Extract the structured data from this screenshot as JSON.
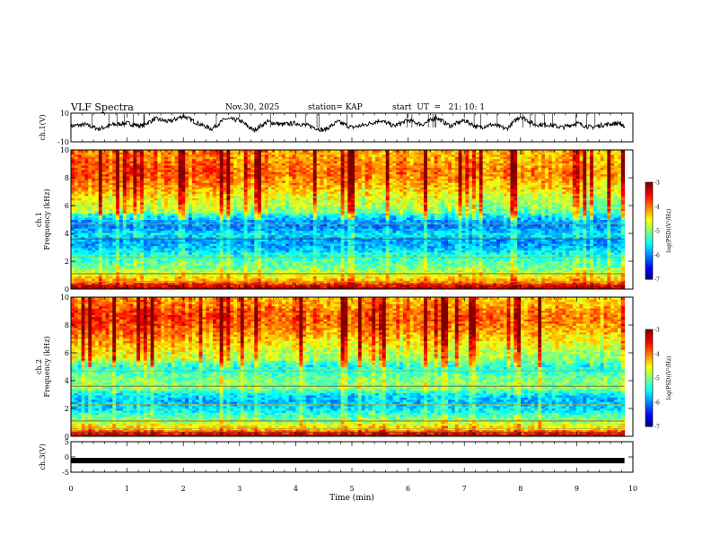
{
  "header": {
    "title": "VLF Spectra",
    "date": "Nov.30, 2025",
    "station": "station= KAP",
    "start": "start  UT  =   21: 10: 1"
  },
  "chart_data": [
    {
      "type": "line",
      "title": "",
      "xlabel": "",
      "ylabel": "ch.1(V)",
      "ylim": [
        -10,
        10
      ],
      "yticks": [
        "10",
        "-10"
      ],
      "xlim": [
        0,
        10
      ],
      "x": [
        0.0,
        0.25,
        0.5,
        0.75,
        1.0,
        1.25,
        1.5,
        1.75,
        2.0,
        2.25,
        2.5,
        2.75,
        3.0,
        3.25,
        3.5,
        3.75,
        4.0,
        4.25,
        4.5,
        4.75,
        5.0,
        5.25,
        5.5,
        5.75,
        6.0,
        6.25,
        6.5,
        6.75,
        7.0,
        7.25,
        7.5,
        7.75,
        8.0,
        8.25,
        8.5,
        8.75,
        9.0,
        9.25,
        9.5,
        9.75,
        9.85
      ],
      "y": [
        1,
        2,
        -1,
        2,
        3,
        1,
        6,
        4,
        8,
        3,
        -1,
        6,
        5,
        -2,
        4,
        2,
        3,
        1,
        -2,
        4,
        0,
        2,
        5,
        1,
        5,
        2,
        7,
        1,
        5,
        0,
        2,
        -1,
        8,
        2,
        2,
        0,
        3,
        0,
        2,
        3,
        1
      ]
    },
    {
      "type": "heatmap",
      "title": "",
      "xlabel": "",
      "ylabel": "ch.1\nFrequency (kHz)",
      "ylim": [
        0,
        10
      ],
      "yticks": [
        "0",
        "2",
        "4",
        "6",
        "8",
        "10"
      ],
      "xlim": [
        0,
        10
      ],
      "data_extent_x": [
        0,
        9.85
      ],
      "colorbar": {
        "label": "log(PSD)(V²/Hz)",
        "ticks": [
          "-3",
          "-4",
          "-5",
          "-6",
          "-7"
        ],
        "range": [
          -7,
          -3
        ]
      },
      "band_profile": [
        {
          "freq_khz": 0.1,
          "log_psd": -3.2
        },
        {
          "freq_khz": 0.5,
          "log_psd": -4.0
        },
        {
          "freq_khz": 1.0,
          "log_psd": -4.6
        },
        {
          "freq_khz": 1.5,
          "log_psd": -5.0
        },
        {
          "freq_khz": 2.0,
          "log_psd": -5.2
        },
        {
          "freq_khz": 2.5,
          "log_psd": -5.4
        },
        {
          "freq_khz": 3.0,
          "log_psd": -5.8
        },
        {
          "freq_khz": 3.5,
          "log_psd": -5.9
        },
        {
          "freq_khz": 4.0,
          "log_psd": -5.6
        },
        {
          "freq_khz": 4.5,
          "log_psd": -6.0
        },
        {
          "freq_khz": 5.0,
          "log_psd": -5.8
        },
        {
          "freq_khz": 5.5,
          "log_psd": -5.2
        },
        {
          "freq_khz": 6.0,
          "log_psd": -5.0
        },
        {
          "freq_khz": 6.5,
          "log_psd": -4.8
        },
        {
          "freq_khz": 7.0,
          "log_psd": -4.6
        },
        {
          "freq_khz": 7.5,
          "log_psd": -4.4
        },
        {
          "freq_khz": 8.0,
          "log_psd": -4.2
        },
        {
          "freq_khz": 8.5,
          "log_psd": -4.1
        },
        {
          "freq_khz": 9.0,
          "log_psd": -4.2
        },
        {
          "freq_khz": 9.5,
          "log_psd": -4.3
        },
        {
          "freq_khz": 10.0,
          "log_psd": -4.3
        }
      ]
    },
    {
      "type": "heatmap",
      "title": "",
      "xlabel": "",
      "ylabel": "ch.2\nFrequency (kHz)",
      "ylim": [
        0,
        10
      ],
      "yticks": [
        "0",
        "2",
        "4",
        "6",
        "8",
        "10"
      ],
      "xlim": [
        0,
        10
      ],
      "data_extent_x": [
        0,
        9.85
      ],
      "colorbar": {
        "label": "log(PSD)(V²/Hz)",
        "ticks": [
          "-3",
          "-4",
          "-5",
          "-6",
          "-7"
        ],
        "range": [
          -7,
          -3
        ]
      },
      "band_profile": [
        {
          "freq_khz": 0.1,
          "log_psd": -3.2
        },
        {
          "freq_khz": 0.5,
          "log_psd": -4.2
        },
        {
          "freq_khz": 1.0,
          "log_psd": -4.8
        },
        {
          "freq_khz": 1.5,
          "log_psd": -5.2
        },
        {
          "freq_khz": 2.0,
          "log_psd": -5.6
        },
        {
          "freq_khz": 2.5,
          "log_psd": -5.8
        },
        {
          "freq_khz": 3.0,
          "log_psd": -5.6
        },
        {
          "freq_khz": 3.5,
          "log_psd": -5.0
        },
        {
          "freq_khz": 4.0,
          "log_psd": -5.0
        },
        {
          "freq_khz": 4.5,
          "log_psd": -5.2
        },
        {
          "freq_khz": 5.0,
          "log_psd": -5.4
        },
        {
          "freq_khz": 5.5,
          "log_psd": -5.0
        },
        {
          "freq_khz": 6.0,
          "log_psd": -4.9
        },
        {
          "freq_khz": 6.5,
          "log_psd": -4.7
        },
        {
          "freq_khz": 7.0,
          "log_psd": -4.5
        },
        {
          "freq_khz": 7.5,
          "log_psd": -4.3
        },
        {
          "freq_khz": 8.0,
          "log_psd": -4.1
        },
        {
          "freq_khz": 8.5,
          "log_psd": -4.0
        },
        {
          "freq_khz": 9.0,
          "log_psd": -4.1
        },
        {
          "freq_khz": 9.5,
          "log_psd": -4.3
        },
        {
          "freq_khz": 10.0,
          "log_psd": -4.4
        }
      ]
    },
    {
      "type": "line",
      "title": "",
      "xlabel": "Time (min)",
      "ylabel": "ch.3(V)",
      "ylim": [
        -5,
        5
      ],
      "yticks": [
        "5",
        "0",
        "-5"
      ],
      "xlim": [
        0,
        10
      ],
      "xticks": [
        "0",
        "1",
        "2",
        "3",
        "4",
        "5",
        "6",
        "7",
        "8",
        "9",
        "10"
      ],
      "x": [
        0.0,
        9.85
      ],
      "y": [
        -1.2,
        -1.2
      ]
    }
  ]
}
